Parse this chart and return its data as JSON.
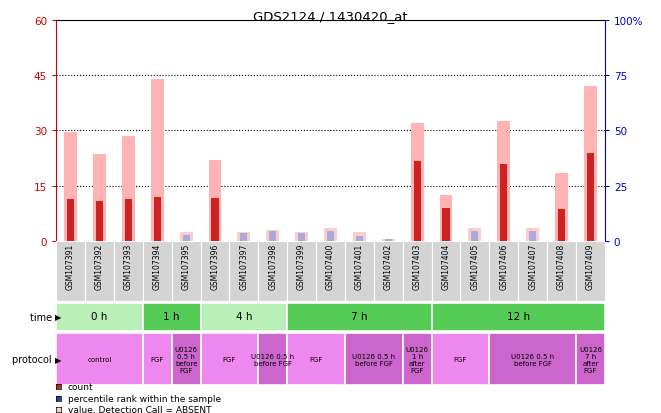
{
  "title": "GDS2124 / 1430420_at",
  "samples": [
    "GSM107391",
    "GSM107392",
    "GSM107393",
    "GSM107394",
    "GSM107395",
    "GSM107396",
    "GSM107397",
    "GSM107398",
    "GSM107399",
    "GSM107400",
    "GSM107401",
    "GSM107402",
    "GSM107403",
    "GSM107404",
    "GSM107405",
    "GSM107406",
    "GSM107407",
    "GSM107408",
    "GSM107409"
  ],
  "values": [
    29.5,
    23.5,
    28.5,
    44.0,
    2.5,
    22.0,
    2.5,
    3.0,
    2.5,
    3.5,
    2.5,
    0.5,
    32.0,
    12.5,
    3.5,
    32.5,
    3.5,
    18.5,
    42.0
  ],
  "ranks": [
    19.0,
    18.0,
    19.0,
    20.0,
    3.0,
    19.5,
    3.5,
    4.5,
    3.5,
    4.5,
    2.5,
    1.0,
    36.0,
    15.0,
    4.5,
    35.0,
    4.5,
    14.5,
    40.0
  ],
  "is_absent": [
    false,
    false,
    false,
    false,
    true,
    false,
    true,
    true,
    true,
    true,
    true,
    true,
    false,
    false,
    true,
    false,
    true,
    false,
    false
  ],
  "left_yticks": [
    0,
    15,
    30,
    45,
    60
  ],
  "right_yticks": [
    0,
    25,
    50,
    75,
    100
  ],
  "ylim_left": [
    0,
    60
  ],
  "ylim_right": [
    0,
    100
  ],
  "time_groups": [
    {
      "label": "0 h",
      "start": 0,
      "end": 3,
      "color": "#b8f0b8"
    },
    {
      "label": "1 h",
      "start": 3,
      "end": 5,
      "color": "#55cc55"
    },
    {
      "label": "4 h",
      "start": 5,
      "end": 8,
      "color": "#b8f0b8"
    },
    {
      "label": "7 h",
      "start": 8,
      "end": 13,
      "color": "#55cc55"
    },
    {
      "label": "12 h",
      "start": 13,
      "end": 19,
      "color": "#55cc55"
    }
  ],
  "protocol_groups": [
    {
      "label": "control",
      "start": 0,
      "end": 3,
      "color": "#ee88ee"
    },
    {
      "label": "FGF",
      "start": 3,
      "end": 4,
      "color": "#ee88ee"
    },
    {
      "label": "U0126\n0.5 h\nbefore\nFGF",
      "start": 4,
      "end": 5,
      "color": "#cc66cc"
    },
    {
      "label": "FGF",
      "start": 5,
      "end": 7,
      "color": "#ee88ee"
    },
    {
      "label": "U0126 0.5 h\nbefore FGF",
      "start": 7,
      "end": 8,
      "color": "#cc66cc"
    },
    {
      "label": "FGF",
      "start": 8,
      "end": 10,
      "color": "#ee88ee"
    },
    {
      "label": "U0126 0.5 h\nbefore FGF",
      "start": 10,
      "end": 12,
      "color": "#cc66cc"
    },
    {
      "label": "U0126\n1 h\nafter\nFGF",
      "start": 12,
      "end": 13,
      "color": "#cc66cc"
    },
    {
      "label": "FGF",
      "start": 13,
      "end": 15,
      "color": "#ee88ee"
    },
    {
      "label": "U0126 0.5 h\nbefore FGF",
      "start": 15,
      "end": 18,
      "color": "#cc66cc"
    },
    {
      "label": "U0126\n7 h\nafter\nFGF",
      "start": 18,
      "end": 19,
      "color": "#cc66cc"
    }
  ],
  "color_present_value": "#ffb3b3",
  "color_present_rank": "#cc2222",
  "color_absent_value": "#ffcccc",
  "color_absent_rank": "#aaaadd",
  "bg_color": "#ffffff",
  "left_axis_color": "#cc0000",
  "right_axis_color": "#0000cc"
}
